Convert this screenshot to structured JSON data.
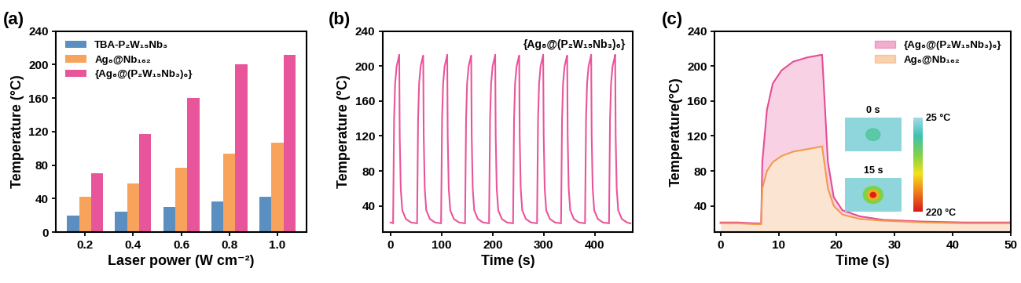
{
  "chart_data": [
    {
      "type": "bar",
      "title": "(a)",
      "x_label": "Laser power (W cm⁻²)",
      "y_label": "Temperature (°C)",
      "categories": [
        "0.2",
        "0.4",
        "0.6",
        "0.8",
        "1.0"
      ],
      "series": [
        {
          "name": "TBA-P₂W₁₅Nb₃",
          "color": "#5a8fc0",
          "values": [
            20,
            24,
            30,
            37,
            42
          ]
        },
        {
          "name": "Ag₈@Nb₁₆₂",
          "color": "#f7a35c",
          "values": [
            42,
            58,
            77,
            94,
            107
          ]
        },
        {
          "name": "{Ag₈@(P₂W₁₅Nb₃)₆}",
          "color": "#e9559a",
          "values": [
            70,
            117,
            160,
            200,
            212
          ]
        }
      ],
      "ylim": [
        0,
        240
      ],
      "yticks": [
        0,
        40,
        80,
        120,
        160,
        200,
        240
      ],
      "legend": "upper left"
    },
    {
      "type": "line",
      "title": "(b)",
      "x_label": "Time (s)",
      "y_label": "Temperature (°C)",
      "annotations": [
        "{Ag₈@(P₂W₁₅Nb₃)₆}"
      ],
      "x": [
        0,
        5,
        7,
        9,
        12,
        16,
        17,
        18,
        20,
        23,
        30,
        40,
        52,
        54,
        56,
        59,
        63,
        64,
        65,
        67,
        70,
        77,
        87,
        99,
        101,
        103,
        106,
        110,
        111,
        112,
        114,
        117,
        124,
        134,
        146,
        148,
        150,
        153,
        157,
        158,
        159,
        161,
        164,
        171,
        181,
        193,
        195,
        197,
        200,
        204,
        205,
        206,
        208,
        211,
        218,
        228,
        240,
        242,
        244,
        247,
        251,
        252,
        253,
        255,
        258,
        265,
        275,
        287,
        289,
        291,
        294,
        298,
        299,
        300,
        302,
        305,
        312,
        322,
        334,
        336,
        338,
        341,
        345,
        346,
        347,
        349,
        352,
        359,
        369,
        381,
        383,
        385,
        388,
        392,
        393,
        394,
        396,
        399,
        406,
        416,
        428,
        430,
        432,
        435,
        439,
        440,
        441,
        443,
        446,
        453,
        463,
        470
      ],
      "series": [
        {
          "name": "{Ag₈@(P₂W₁₅Nb₃)₆}",
          "color": "#e9559a",
          "values": [
            21,
            20,
            140,
            180,
            200,
            210,
            213,
            120,
            60,
            35,
            25,
            21,
            20,
            140,
            180,
            200,
            210,
            212,
            120,
            60,
            35,
            25,
            21,
            20,
            140,
            180,
            200,
            210,
            213,
            120,
            60,
            35,
            25,
            21,
            20,
            140,
            180,
            200,
            210,
            212,
            120,
            60,
            35,
            25,
            21,
            20,
            140,
            180,
            200,
            210,
            213,
            120,
            60,
            35,
            25,
            21,
            20,
            140,
            180,
            200,
            210,
            212,
            120,
            60,
            35,
            25,
            21,
            20,
            140,
            180,
            200,
            210,
            213,
            120,
            60,
            35,
            25,
            21,
            20,
            140,
            180,
            200,
            210,
            212,
            120,
            60,
            35,
            25,
            21,
            20,
            140,
            180,
            200,
            210,
            213,
            120,
            60,
            35,
            25,
            21,
            20,
            140,
            180,
            200,
            210,
            213,
            120,
            60,
            35,
            25,
            21,
            20
          ]
        }
      ],
      "xlim": [
        -15,
        475
      ],
      "xticks": [
        0,
        100,
        200,
        300,
        400
      ],
      "ylim": [
        10,
        240
      ],
      "yticks": [
        40,
        80,
        120,
        160,
        200,
        240
      ]
    },
    {
      "type": "area",
      "title": "(c)",
      "x_label": "Time (s)",
      "y_label": "Temperature(°C)",
      "x": [
        0,
        3,
        6,
        7,
        7.2,
        8,
        9,
        10.5,
        12.5,
        15,
        17.5,
        18.5,
        19.5,
        21,
        24,
        28,
        35,
        42,
        50
      ],
      "series": [
        {
          "name": "{Ag₈@(P₂W₁₅Nb₃)₆}",
          "color": "#e44d94",
          "values": [
            21,
            21,
            20,
            20,
            90,
            150,
            180,
            195,
            205,
            210,
            213,
            90,
            50,
            35,
            28,
            24,
            22,
            21,
            21
          ]
        },
        {
          "name": "Ag₈@Nb₁₆₂",
          "color": "#f29a4e",
          "values": [
            20,
            20,
            19,
            19,
            60,
            80,
            90,
            97,
            102,
            105,
            108,
            60,
            40,
            30,
            25,
            23,
            21,
            20,
            20
          ]
        }
      ],
      "xlim": [
        -1,
        50
      ],
      "xticks": [
        0,
        10,
        20,
        30,
        40,
        50
      ],
      "ylim": [
        10,
        240
      ],
      "yticks": [
        40,
        80,
        120,
        160,
        200,
        240
      ],
      "legend": "upper right",
      "inset": {
        "image_labels": [
          "0 s",
          "15 s"
        ],
        "colorbar_range": [
          25,
          220
        ],
        "colorbar_ticks": [
          {
            "value": 25,
            "label": "25 °C"
          },
          {
            "value": 220,
            "label": "220 °C"
          }
        ]
      }
    }
  ]
}
